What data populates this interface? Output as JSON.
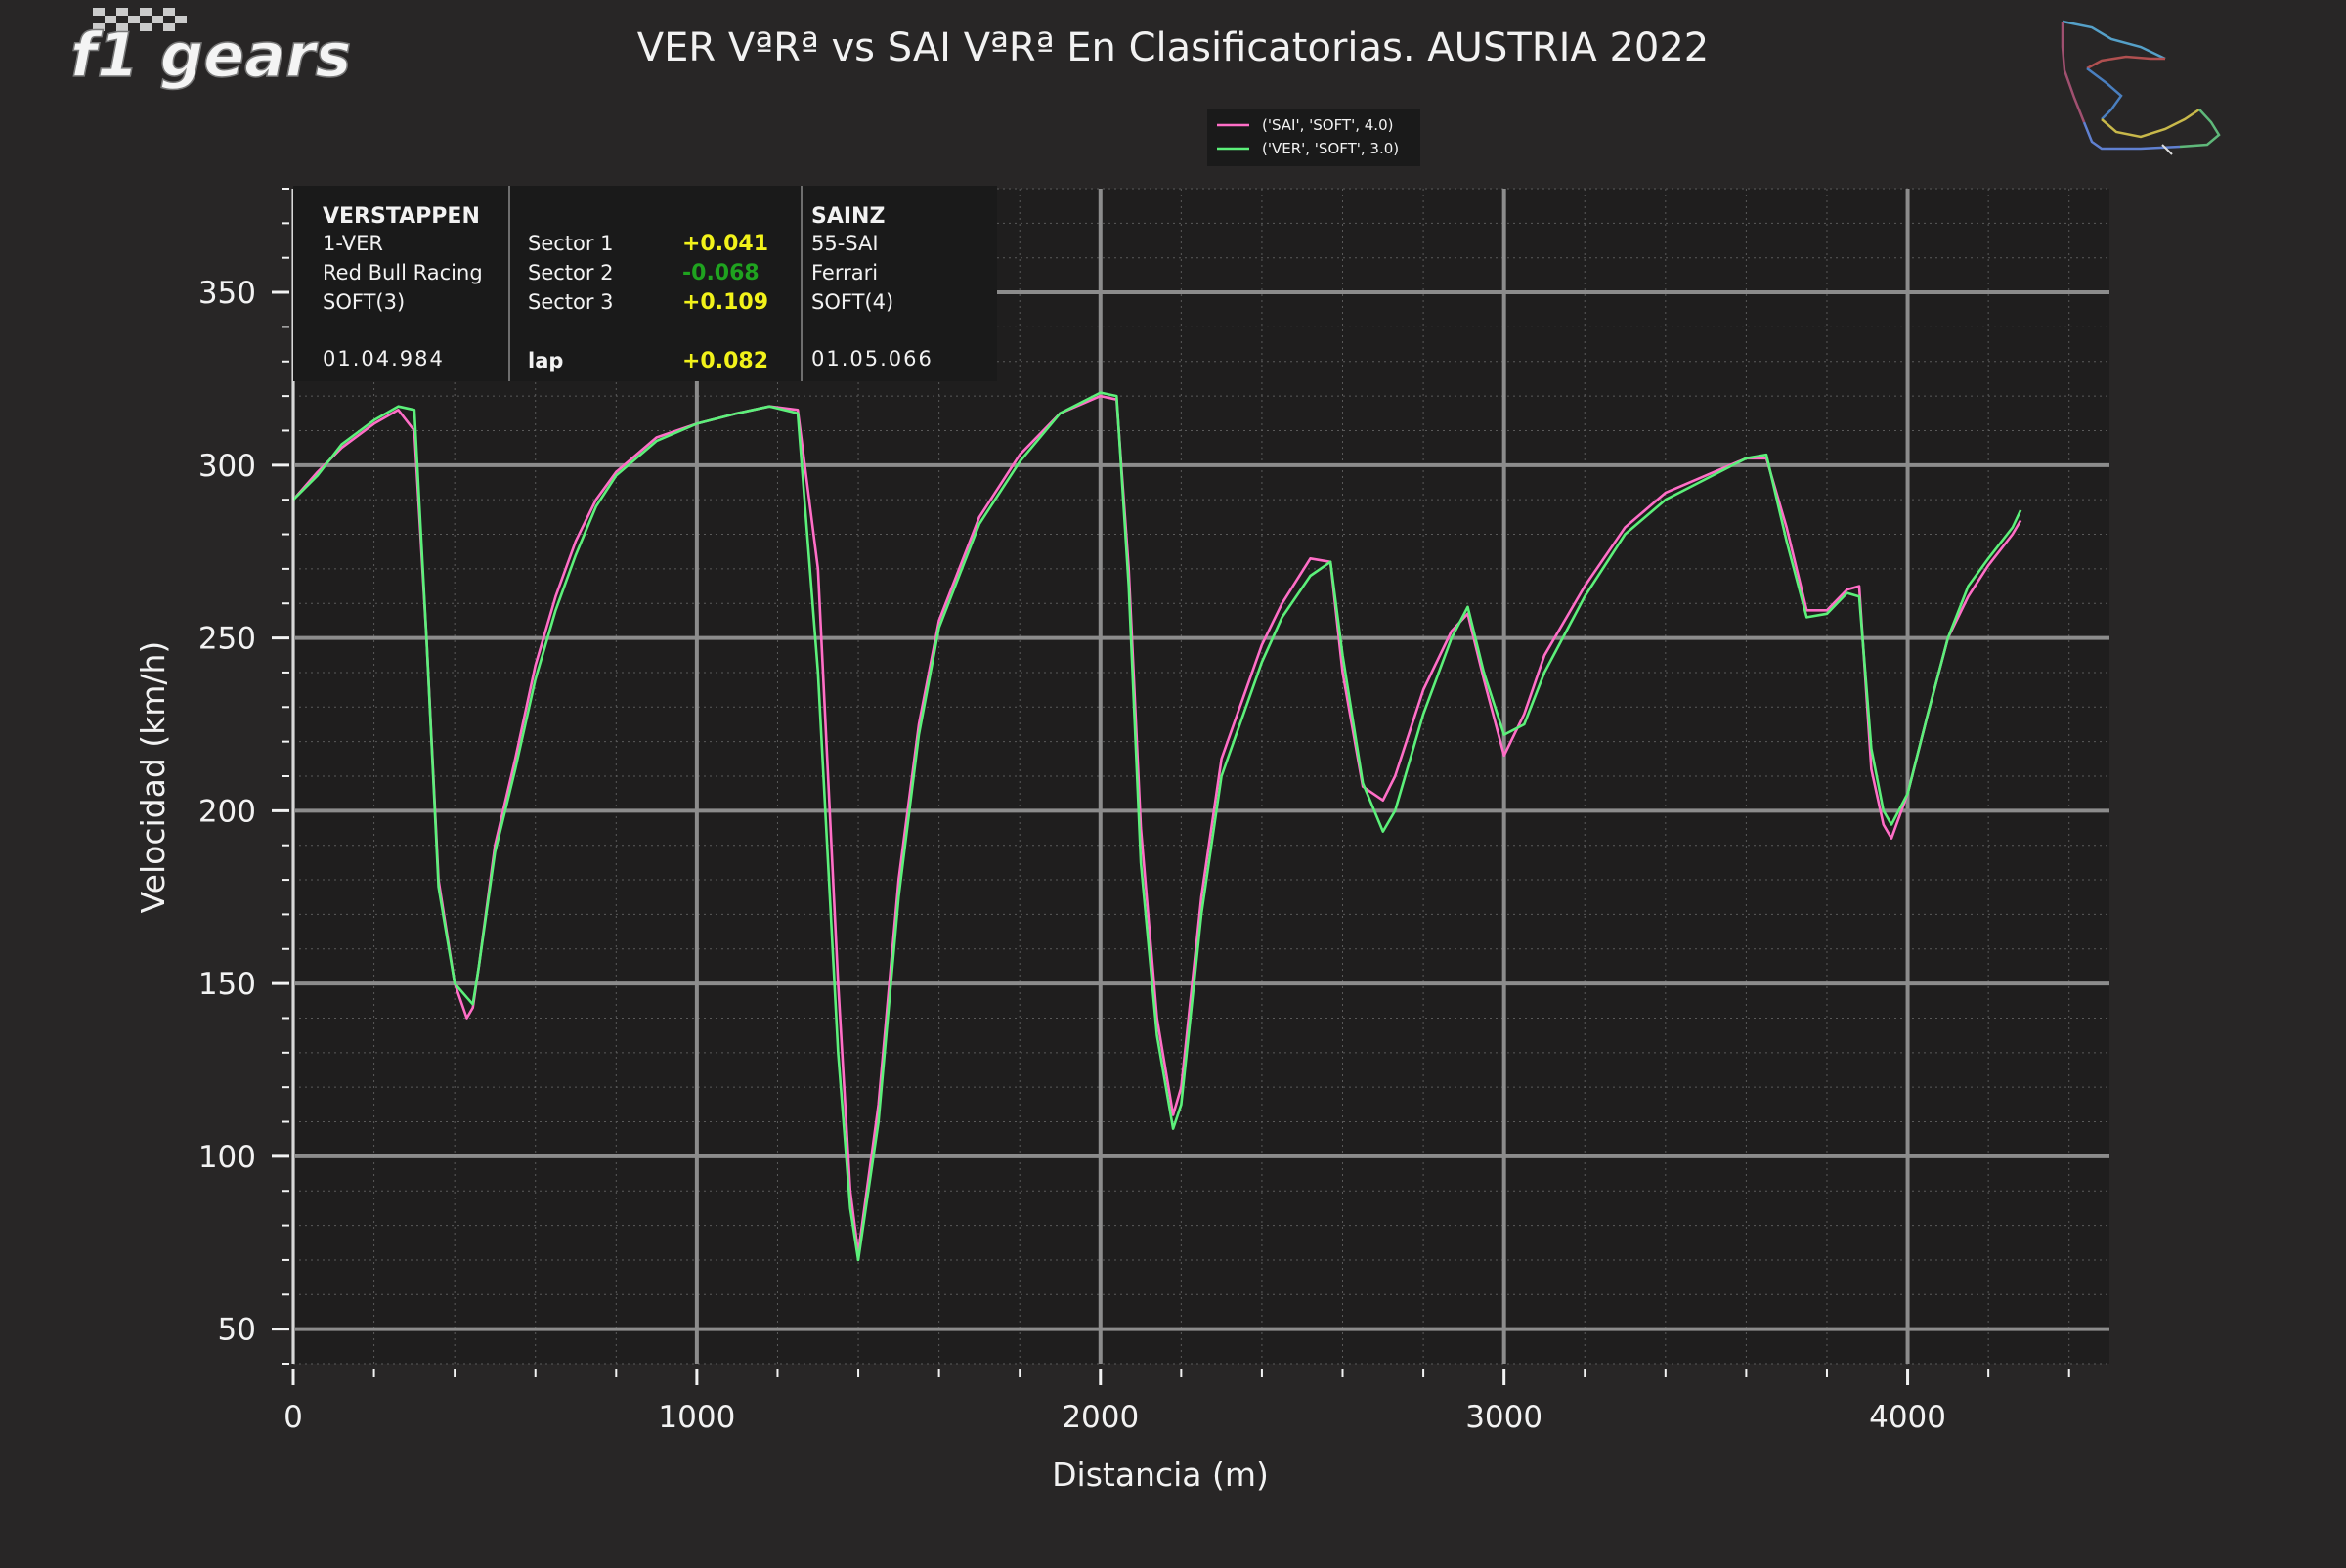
{
  "logo": {
    "text": "f1 gears"
  },
  "chart_data": {
    "type": "line",
    "title": "VER VªRª vs SAI VªRª En Clasificatorias. AUSTRIA 2022",
    "xlabel": "Distancia (m)",
    "ylabel": "Velocidad (km/h)",
    "xlim": [
      0,
      4500
    ],
    "ylim": [
      40,
      380
    ],
    "xticks": [
      0,
      1000,
      2000,
      3000,
      4000
    ],
    "yticks": [
      50,
      100,
      150,
      200,
      250,
      300,
      350
    ],
    "x_tick_labels": [
      "0",
      "1000",
      "2000",
      "3000",
      "4000"
    ],
    "y_tick_labels": [
      "50",
      "100",
      "150",
      "200",
      "250",
      "300",
      "350"
    ],
    "grid": true,
    "legend_position": "top-center",
    "series": [
      {
        "name": "('SAI', 'SOFT', 4.0)",
        "color": "#ff6ec7",
        "x": [
          0,
          60,
          120,
          200,
          260,
          300,
          330,
          360,
          400,
          430,
          445,
          460,
          500,
          550,
          600,
          650,
          700,
          750,
          800,
          900,
          1000,
          1100,
          1180,
          1250,
          1300,
          1350,
          1380,
          1400,
          1450,
          1500,
          1550,
          1600,
          1700,
          1800,
          1900,
          2000,
          2040,
          2070,
          2100,
          2140,
          2180,
          2200,
          2250,
          2300,
          2400,
          2450,
          2520,
          2570,
          2600,
          2650,
          2700,
          2730,
          2800,
          2870,
          2910,
          2950,
          3000,
          3050,
          3100,
          3200,
          3300,
          3400,
          3500,
          3600,
          3650,
          3700,
          3750,
          3800,
          3850,
          3880,
          3910,
          3940,
          3960,
          4000,
          4050,
          4100,
          4150,
          4200,
          4260,
          4280
        ],
        "y": [
          290,
          298,
          305,
          312,
          316,
          310,
          250,
          180,
          150,
          140,
          143,
          155,
          190,
          215,
          242,
          262,
          278,
          290,
          298,
          308,
          312,
          315,
          317,
          316,
          270,
          150,
          90,
          72,
          115,
          180,
          225,
          255,
          285,
          303,
          315,
          320,
          319,
          270,
          195,
          140,
          112,
          120,
          175,
          215,
          248,
          260,
          273,
          272,
          240,
          207,
          203,
          210,
          235,
          252,
          257,
          238,
          216,
          228,
          245,
          265,
          282,
          292,
          297,
          302,
          302,
          282,
          258,
          258,
          264,
          265,
          212,
          196,
          192,
          205,
          228,
          250,
          262,
          271,
          280,
          284
        ]
      },
      {
        "name": "('VER', 'SOFT', 3.0)",
        "color": "#5cf07a",
        "x": [
          0,
          60,
          120,
          200,
          260,
          300,
          330,
          360,
          400,
          430,
          445,
          460,
          500,
          550,
          600,
          650,
          700,
          750,
          800,
          900,
          1000,
          1100,
          1180,
          1250,
          1300,
          1350,
          1380,
          1400,
          1450,
          1500,
          1550,
          1600,
          1700,
          1800,
          1900,
          2000,
          2040,
          2070,
          2100,
          2140,
          2180,
          2200,
          2250,
          2300,
          2400,
          2450,
          2520,
          2570,
          2600,
          2650,
          2700,
          2730,
          2800,
          2870,
          2910,
          2950,
          3000,
          3050,
          3100,
          3200,
          3300,
          3400,
          3500,
          3600,
          3650,
          3700,
          3750,
          3800,
          3850,
          3880,
          3910,
          3940,
          3960,
          4000,
          4050,
          4100,
          4150,
          4200,
          4260,
          4280
        ],
        "y": [
          290,
          297,
          306,
          313,
          317,
          316,
          250,
          178,
          150,
          146,
          144,
          155,
          188,
          212,
          238,
          258,
          274,
          288,
          297,
          307,
          312,
          315,
          317,
          315,
          240,
          130,
          85,
          70,
          110,
          175,
          222,
          253,
          283,
          301,
          315,
          321,
          320,
          265,
          185,
          135,
          108,
          115,
          170,
          210,
          243,
          256,
          268,
          272,
          245,
          208,
          194,
          200,
          228,
          250,
          259,
          240,
          222,
          225,
          240,
          262,
          280,
          290,
          296,
          302,
          303,
          278,
          256,
          257,
          263,
          262,
          218,
          200,
          196,
          205,
          228,
          250,
          265,
          273,
          282,
          287
        ]
      }
    ]
  },
  "info_table": {
    "driver1": {
      "name": "VERSTAPPEN",
      "code": "1-VER",
      "team": "Red Bull Racing",
      "tyre": "SOFT(3)",
      "laptime": "01.04.984"
    },
    "sectors": [
      {
        "label": "Sector 1",
        "delta": "+0.041",
        "color": "#f2f21a"
      },
      {
        "label": "Sector 2",
        "delta": "-0.068",
        "color": "#1fa31f"
      },
      {
        "label": "Sector 3",
        "delta": "+0.109",
        "color": "#f2f21a"
      }
    ],
    "lap": {
      "label": "lap",
      "delta": "+0.082",
      "color": "#f2f21a"
    },
    "driver2": {
      "name": "SAINZ",
      "code": "55-SAI",
      "team": "Ferrari",
      "tyre": "SOFT(4)",
      "laptime": "01.05.066"
    }
  }
}
